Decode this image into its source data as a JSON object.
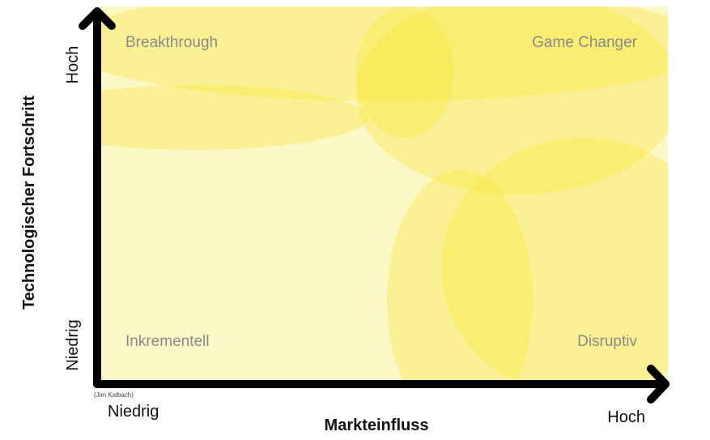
{
  "quadrants": {
    "top_left": "Breakthrough",
    "top_right": "Game Changer",
    "bottom_left": "Inkrementell",
    "bottom_right": "Disruptiv"
  },
  "x_axis": {
    "title": "Markteinfluss",
    "low": "Niedrig",
    "high": "Hoch"
  },
  "y_axis": {
    "title": "Technologischer Fortschritt",
    "low": "Niedrig",
    "high": "Hoch"
  },
  "credit": "(Jim Kalbach)",
  "colors": {
    "background_fill": "#fdf8c8",
    "ellipse_fill": "#f7e534",
    "axis": "#000000",
    "quadrant_text": "#8a8a8a"
  }
}
